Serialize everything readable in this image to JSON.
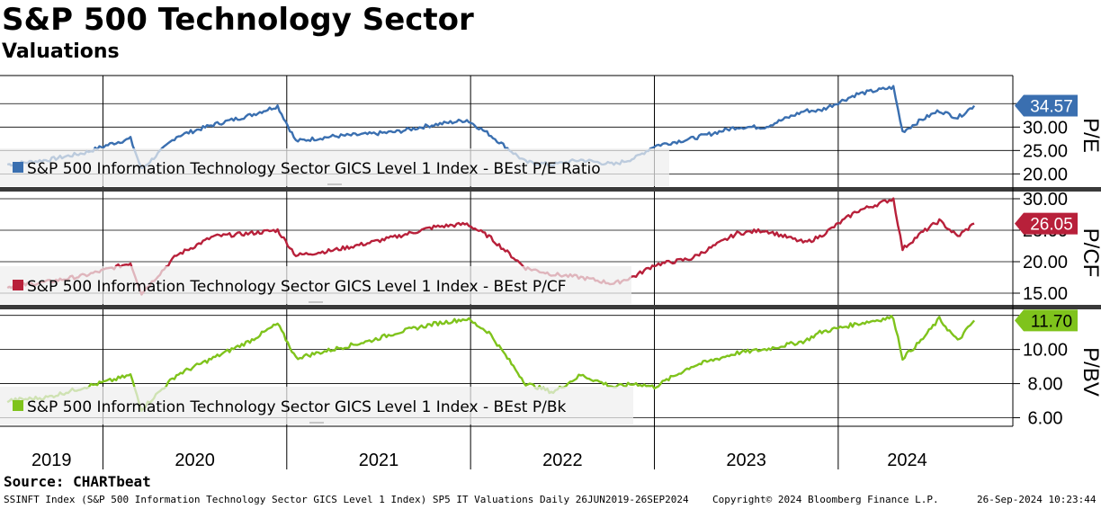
{
  "title": "S&P 500 Technology Sector",
  "subtitle": "Valuations",
  "source": "Source: CHARTbeat",
  "footer": {
    "left": "SSINFT Index (S&P 500 Information Technology Sector GICS Level 1 Index) SP5 IT Valuations  Daily 26JUN2019-26SEP2024",
    "middle": "Copyright© 2024 Bloomberg Finance L.P.",
    "right": "26-Sep-2024 10:23:44"
  },
  "chart_data": [
    {
      "type": "line",
      "panel": "pe",
      "ylabel": "P/E",
      "legend": "S&P 500 Information Technology Sector GICS Level 1 Index - BEst P/E Ratio",
      "color": "#3a6fb0",
      "last_value": "34.57",
      "yticks": [
        "20.00",
        "25.00",
        "30.00"
      ],
      "ylim": [
        17,
        41
      ],
      "x": [
        2019.48,
        2019.7,
        2019.9,
        2020.05,
        2020.15,
        2020.21,
        2020.4,
        2020.6,
        2020.8,
        2020.95,
        2021.05,
        2021.25,
        2021.45,
        2021.6,
        2021.8,
        2021.98,
        2022.1,
        2022.3,
        2022.45,
        2022.6,
        2022.78,
        2022.9,
        2023.0,
        2023.2,
        2023.45,
        2023.6,
        2023.82,
        2023.9,
        2024.1,
        2024.3,
        2024.35,
        2024.45,
        2024.55,
        2024.65,
        2024.74
      ],
      "y": [
        22.0,
        23.0,
        24.5,
        26.5,
        27.5,
        21.0,
        28.0,
        30.5,
        32.5,
        34.5,
        27.0,
        28.0,
        28.5,
        29.0,
        30.5,
        31.5,
        28.5,
        22.5,
        22.0,
        23.0,
        22.0,
        23.5,
        26.0,
        27.5,
        30.0,
        30.0,
        33.5,
        33.5,
        37.0,
        38.5,
        29.0,
        31.5,
        33.5,
        32.0,
        34.57
      ]
    },
    {
      "type": "line",
      "panel": "pcf",
      "ylabel": "P/CF",
      "legend": "S&P 500 Information Technology Sector GICS Level 1 Index - BEst P/CF",
      "color": "#b8203a",
      "last_value": "26.05",
      "yticks": [
        "15.00",
        "20.00",
        "25.00",
        "30.00"
      ],
      "ylim": [
        13,
        31
      ],
      "x": [
        2019.48,
        2019.7,
        2019.9,
        2020.05,
        2020.15,
        2020.21,
        2020.4,
        2020.6,
        2020.8,
        2020.95,
        2021.05,
        2021.25,
        2021.45,
        2021.6,
        2021.8,
        2021.98,
        2022.1,
        2022.3,
        2022.45,
        2022.6,
        2022.78,
        2022.9,
        2023.0,
        2023.2,
        2023.45,
        2023.6,
        2023.82,
        2023.9,
        2024.1,
        2024.3,
        2024.35,
        2024.45,
        2024.55,
        2024.65,
        2024.74
      ],
      "y": [
        16.0,
        16.8,
        17.8,
        19.0,
        19.8,
        15.0,
        21.0,
        24.0,
        24.5,
        25.0,
        21.0,
        21.8,
        23.0,
        24.0,
        25.5,
        26.0,
        24.0,
        19.0,
        18.0,
        17.5,
        16.5,
        17.8,
        19.5,
        20.5,
        24.5,
        25.0,
        23.0,
        24.0,
        28.0,
        30.0,
        22.0,
        24.5,
        26.5,
        24.0,
        26.05
      ]
    },
    {
      "type": "line",
      "panel": "pbv",
      "ylabel": "P/BV",
      "legend": "S&P 500 Information Technology Sector GICS Level 1 Index - BEst P/Bk",
      "color": "#7fc31c",
      "last_value": "11.70",
      "yticks": [
        "6.00",
        "8.00",
        "10.00"
      ],
      "ylim": [
        5.5,
        12.3
      ],
      "x": [
        2019.48,
        2019.7,
        2019.9,
        2020.05,
        2020.15,
        2020.21,
        2020.4,
        2020.6,
        2020.8,
        2020.95,
        2021.05,
        2021.25,
        2021.45,
        2021.6,
        2021.8,
        2021.98,
        2022.1,
        2022.3,
        2022.45,
        2022.6,
        2022.78,
        2022.9,
        2023.0,
        2023.2,
        2023.45,
        2023.6,
        2023.82,
        2023.9,
        2024.1,
        2024.3,
        2024.35,
        2024.45,
        2024.55,
        2024.65,
        2024.74
      ],
      "y": [
        7.0,
        7.2,
        7.8,
        8.2,
        8.5,
        6.5,
        8.5,
        9.5,
        10.5,
        11.5,
        9.5,
        10.0,
        10.5,
        11.0,
        11.5,
        11.8,
        11.0,
        8.0,
        7.5,
        8.5,
        7.8,
        8.0,
        7.8,
        9.0,
        9.8,
        10.0,
        10.5,
        11.0,
        11.5,
        11.9,
        9.5,
        10.5,
        11.8,
        10.5,
        11.7
      ]
    }
  ],
  "xaxis": {
    "year_labels": [
      "2019",
      "2020",
      "2021",
      "2022",
      "2023",
      "2024"
    ]
  }
}
